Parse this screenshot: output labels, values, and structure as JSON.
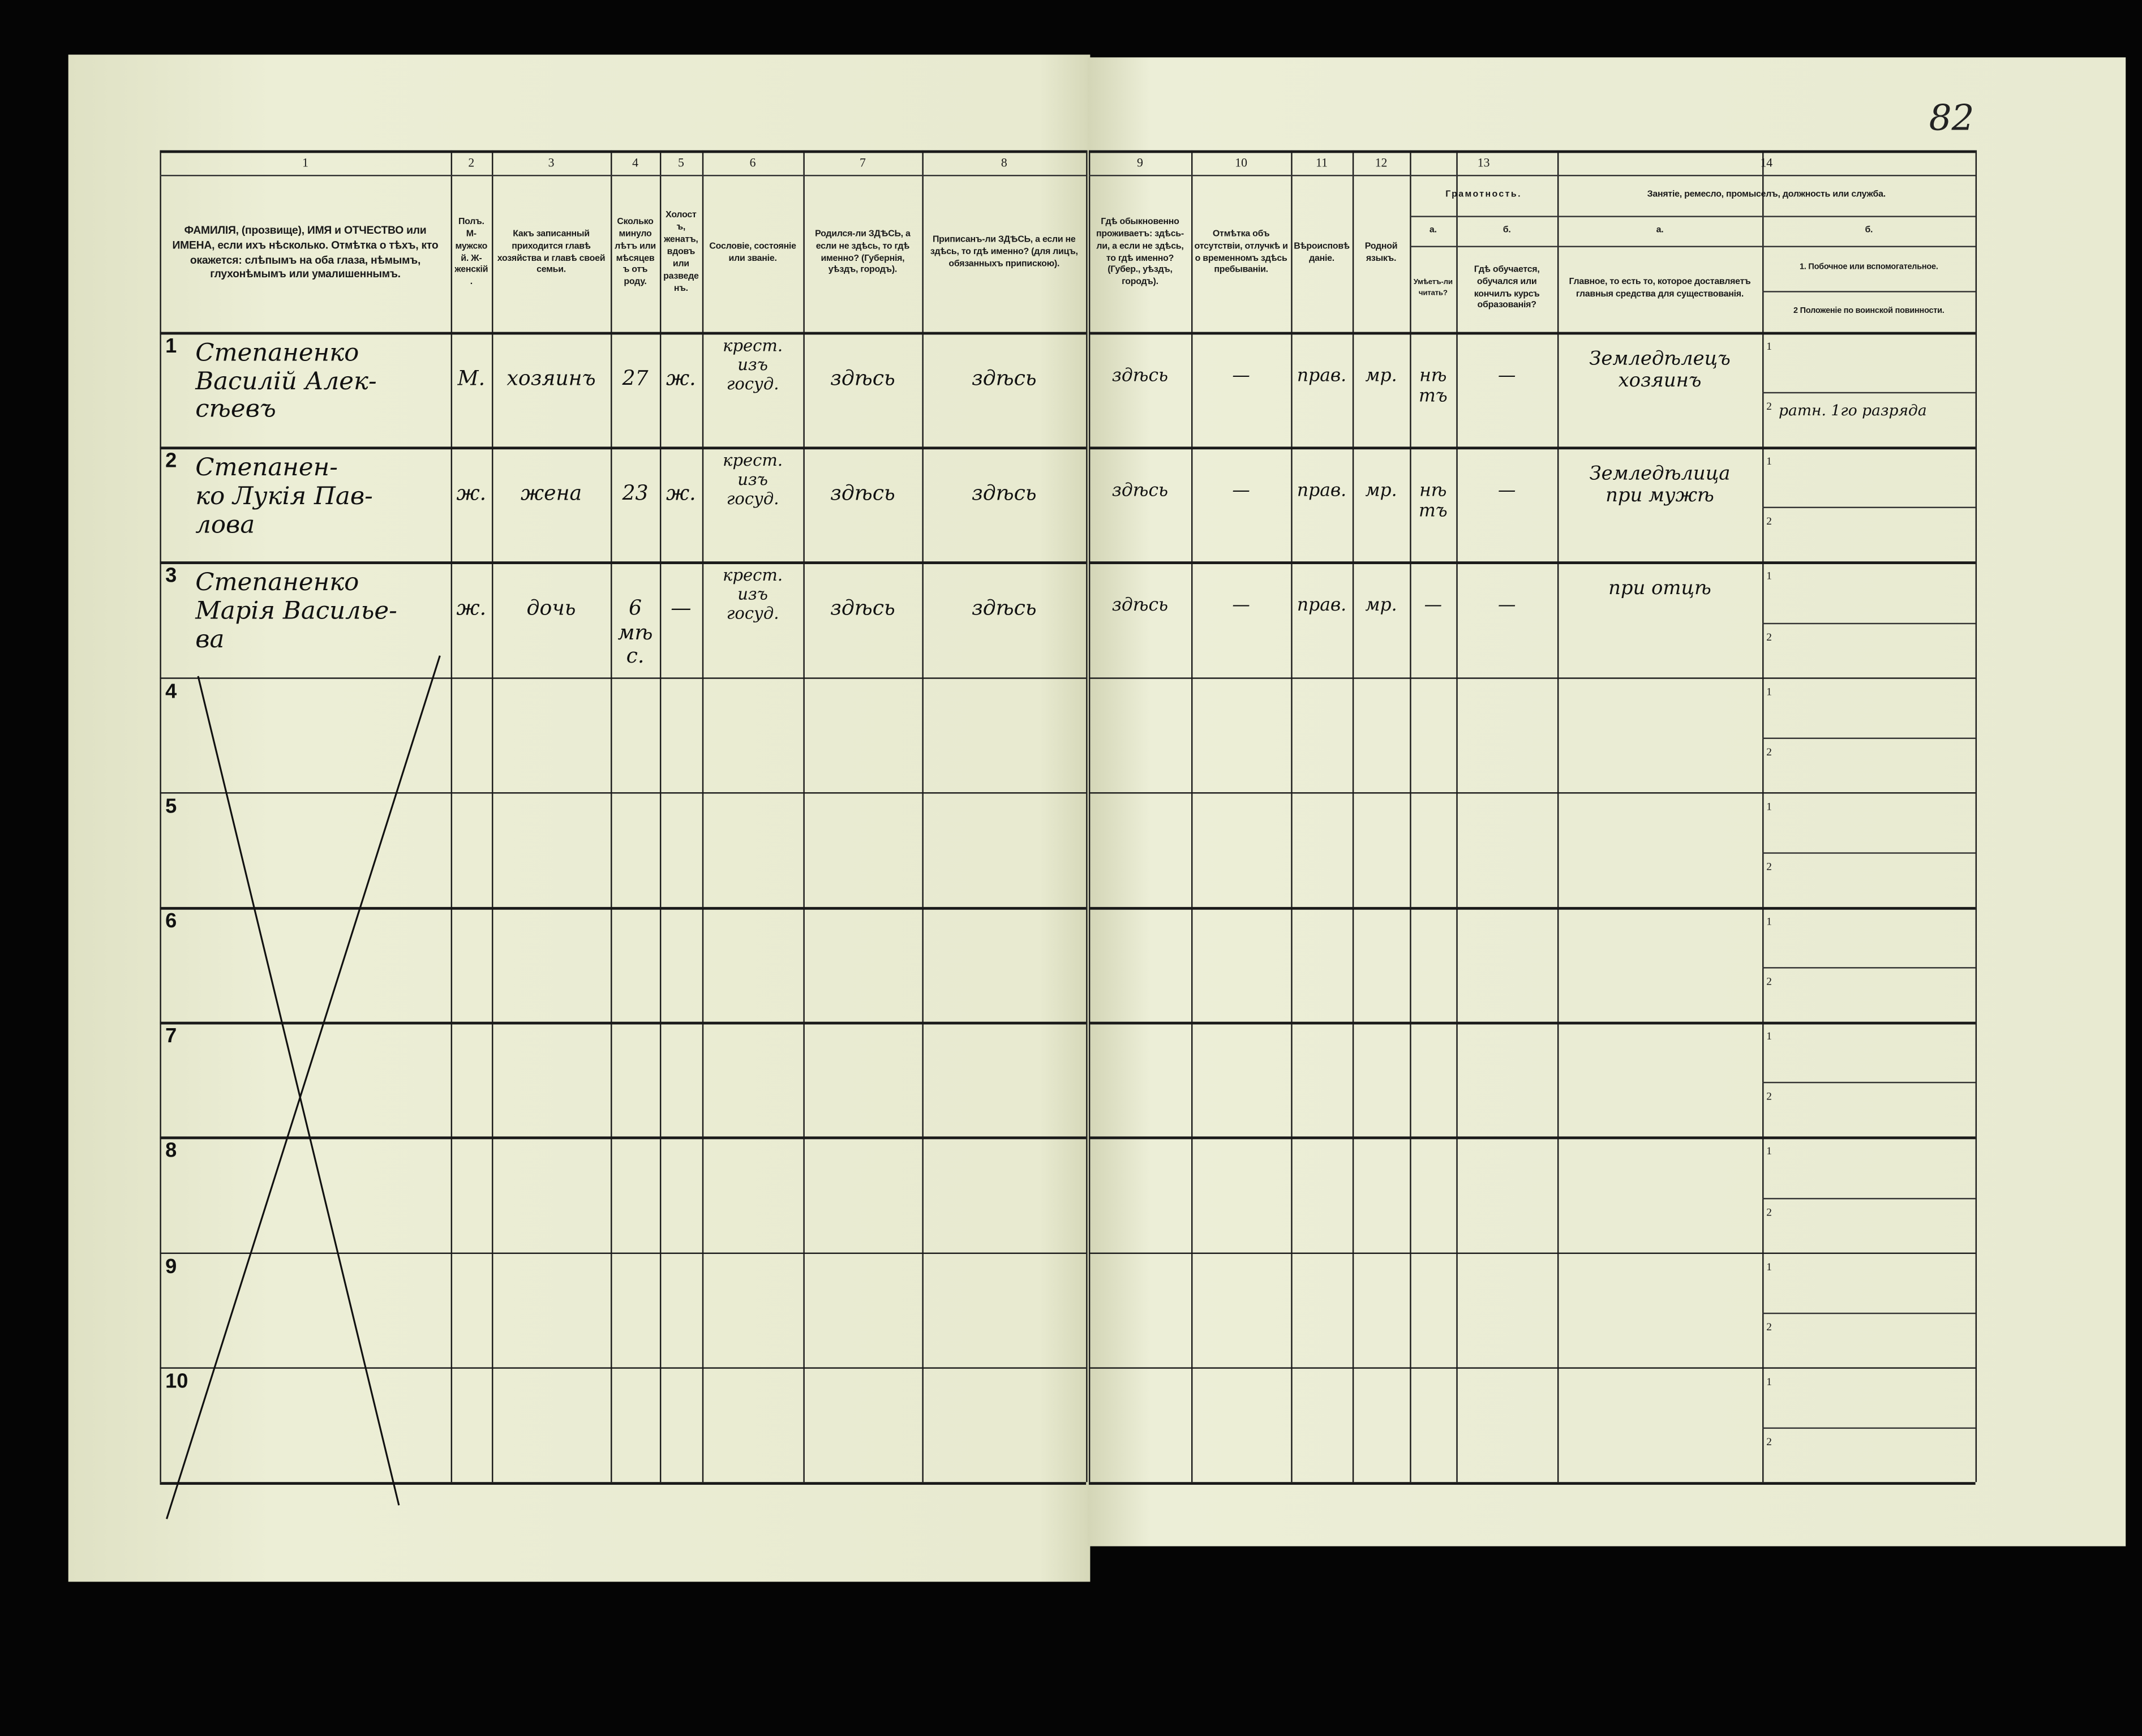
{
  "page_number": "82",
  "left_header": [
    {
      "num": "1",
      "text": "ФАМИЛІЯ, (прозвище), ИМЯ и ОТЧЕСТВО или ИМЕНА, если ихъ нѣсколько. Отмѣтка о тѣхъ, кто окажется: слѣпымъ на оба глаза, нѣмымъ, глухонѣмымъ или умалишеннымъ."
    },
    {
      "num": "2",
      "text": "Полъ. М-мужской. Ж-женскій."
    },
    {
      "num": "3",
      "text": "Какъ записанный приходится главѣ хозяйства и главѣ своей семьи."
    },
    {
      "num": "4",
      "text": "Сколько минуло лѣтъ или мѣсяцевъ отъ роду."
    },
    {
      "num": "5",
      "text": "Холостъ, женатъ, вдовъ или разведенъ."
    },
    {
      "num": "6",
      "text": "Сословіе, состояніе или званіе."
    },
    {
      "num": "7",
      "text": "Родился-ли ЗДѢСЬ, а если не здѣсь, то гдѣ именно? (Губернія, уѣздъ, городъ)."
    },
    {
      "num": "8",
      "text": "Приписанъ-ли ЗДѢСЬ, а если не здѣсь, то гдѣ именно? (для лицъ, обязанныхъ припискою)."
    }
  ],
  "right_header": [
    {
      "num": "9",
      "text": "Гдѣ обыкновенно проживаетъ: здѣсь-ли, а если не здѣсь, то гдѣ именно? (Губер., уѣздъ, городъ)."
    },
    {
      "num": "10",
      "text": "Отмѣтка объ отсутствіи, отлучкѣ и о временномъ здѣсь пребываніи."
    },
    {
      "num": "11",
      "text": "Вѣроисповѣданіе."
    },
    {
      "num": "12",
      "text": "Родной языкъ."
    },
    {
      "num": "13",
      "title": "Грамотность.",
      "a_label": "а.",
      "a_text": "Умѣетъ-ли читать?",
      "b_label": "б.",
      "b_text": "Гдѣ обучается, обучался или кончилъ курсъ образованія?"
    },
    {
      "num": "14",
      "title": "Занятіе, ремесло, промыселъ, должность или служба.",
      "a_label": "а.",
      "a_text": "Главное, то есть то, которое доставляетъ главныя средства для существованія.",
      "b_label": "б.",
      "b1_text": "1. Побочное или вспомогательное.",
      "b2_text": "2 Положеніе по воинской повинности."
    }
  ],
  "rows": [
    {
      "n": "1",
      "name": "Степаненко\nВасилій Алек-\nсѣевъ",
      "sex": "М.",
      "relation": "хозяинъ",
      "age": "27",
      "marital": "ж.",
      "estate": "крест.\nизъ\nгосуд.",
      "born": "здѣсь",
      "registered": "здѣсь",
      "residence": "здѣсь",
      "absence": "—",
      "religion": "прав.",
      "language": "мр.",
      "literate": "нѣтъ",
      "education": "—",
      "occupation": "Земледѣлецъ\nхозяинъ",
      "secondary": "",
      "military": "ратн. 1го разряда"
    },
    {
      "n": "2",
      "name": "Степанен-\nко Лукія Пав-\nлова",
      "sex": "ж.",
      "relation": "жена",
      "age": "23",
      "marital": "ж.",
      "estate": "крест.\nизъ\nгосуд.",
      "born": "здѣсь",
      "registered": "здѣсь",
      "residence": "здѣсь",
      "absence": "—",
      "religion": "прав.",
      "language": "мр.",
      "literate": "нѣтъ",
      "education": "—",
      "occupation": "Земледѣлица\nпри мужѣ",
      "secondary": "",
      "military": ""
    },
    {
      "n": "3",
      "name": "Степаненко\nМарія Василье-\nва",
      "sex": "ж.",
      "relation": "дочь",
      "age": "6 мѣс.",
      "marital": "—",
      "estate": "крест.\nизъ\nгосуд.",
      "born": "здѣсь",
      "registered": "здѣсь",
      "residence": "здѣсь",
      "absence": "—",
      "religion": "прав.",
      "language": "мр.",
      "literate": "—",
      "education": "—",
      "occupation": "при отцѣ",
      "secondary": "",
      "military": ""
    },
    {
      "n": "4"
    },
    {
      "n": "5"
    },
    {
      "n": "6"
    },
    {
      "n": "7"
    },
    {
      "n": "8"
    },
    {
      "n": "9"
    },
    {
      "n": "10"
    }
  ],
  "sub_labels": {
    "one": "1",
    "two": "2"
  }
}
